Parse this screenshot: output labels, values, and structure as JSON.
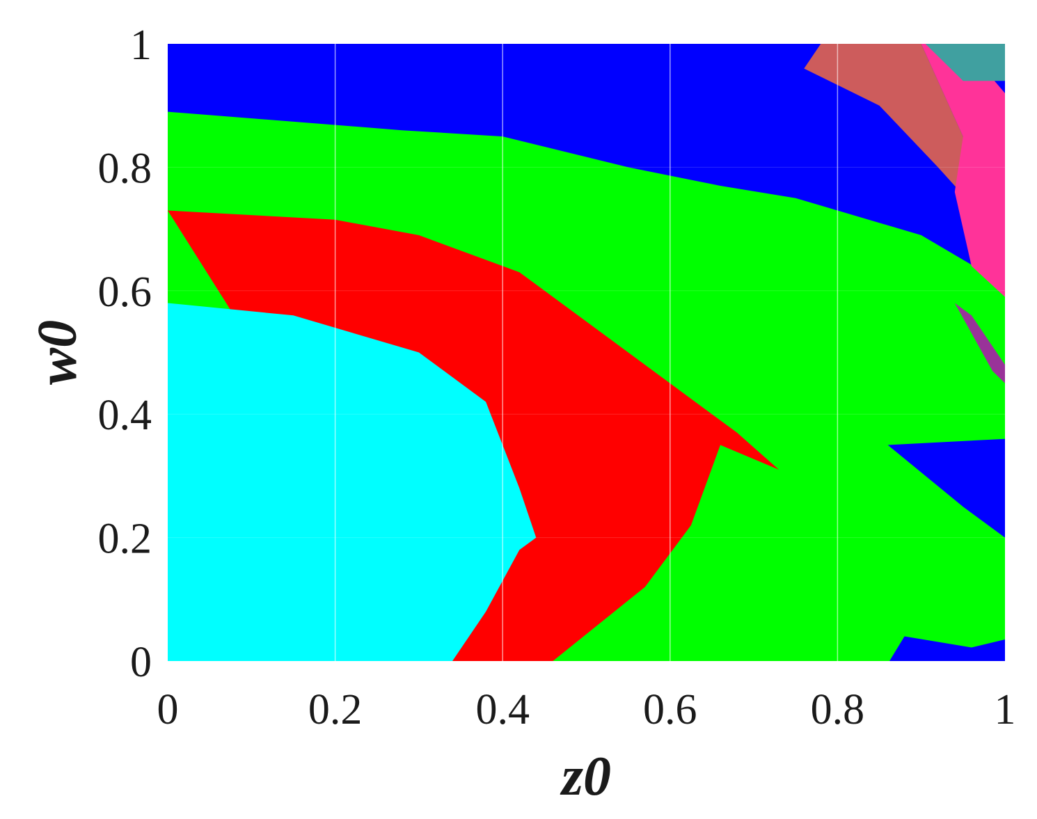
{
  "chart_data": {
    "type": "heatmap",
    "title": "",
    "xlabel": "z0",
    "ylabel": "w0",
    "xlim": [
      0,
      1
    ],
    "ylim": [
      0,
      1
    ],
    "x_ticks": [
      "0",
      "0.2",
      "0.4",
      "0.6",
      "0.8",
      "1"
    ],
    "y_ticks": [
      "0",
      "0.2",
      "0.4",
      "0.6",
      "0.8",
      "1"
    ],
    "x_tick_values": [
      0,
      0.2,
      0.4,
      0.6,
      0.8,
      1
    ],
    "y_tick_values": [
      0,
      0.2,
      0.4,
      0.6,
      0.8,
      1
    ],
    "grid": true,
    "legend": "none",
    "regions": [
      {
        "color": "#0000ff",
        "outline": [
          [
            0,
            0
          ],
          [
            1,
            0
          ],
          [
            1,
            1
          ],
          [
            0,
            1
          ]
        ]
      },
      {
        "color": "#00ff00",
        "outline": [
          [
            0,
            0
          ],
          [
            0.862,
            0
          ],
          [
            0.88,
            0.04
          ],
          [
            0.96,
            0.022
          ],
          [
            1,
            0.035
          ],
          [
            1,
            0.2
          ],
          [
            0.95,
            0.25
          ],
          [
            0.86,
            0.35
          ],
          [
            1,
            0.36
          ],
          [
            1,
            0.61
          ],
          [
            0.9,
            0.69
          ],
          [
            0.75,
            0.75
          ],
          [
            0.66,
            0.77
          ],
          [
            0.55,
            0.8
          ],
          [
            0.4,
            0.85
          ],
          [
            0.28,
            0.86
          ],
          [
            0,
            0.89
          ]
        ]
      },
      {
        "color": "#ff0000",
        "outline": [
          [
            0.34,
            0
          ],
          [
            0.46,
            0
          ],
          [
            0.57,
            0.12
          ],
          [
            0.625,
            0.22
          ],
          [
            0.66,
            0.35
          ],
          [
            0.73,
            0.31
          ],
          [
            0.68,
            0.37
          ],
          [
            0.54,
            0.51
          ],
          [
            0.42,
            0.63
          ],
          [
            0.3,
            0.69
          ],
          [
            0.2,
            0.715
          ],
          [
            0,
            0.73
          ]
        ]
      },
      {
        "color": "#00ffff",
        "outline": [
          [
            0,
            0
          ],
          [
            0.34,
            0
          ],
          [
            0.38,
            0.08
          ],
          [
            0.42,
            0.18
          ],
          [
            0.44,
            0.2
          ],
          [
            0.42,
            0.28
          ],
          [
            0.38,
            0.42
          ],
          [
            0.3,
            0.5
          ],
          [
            0.15,
            0.56
          ],
          [
            0,
            0.58
          ]
        ]
      },
      {
        "color": "#cd5c5c",
        "outline": [
          [
            0.78,
            1
          ],
          [
            0.9,
            1
          ],
          [
            0.95,
            0.85
          ],
          [
            0.96,
            0.74
          ],
          [
            0.92,
            0.8
          ],
          [
            0.85,
            0.9
          ],
          [
            0.76,
            0.96
          ]
        ]
      },
      {
        "color": "#ff3399",
        "outline": [
          [
            0.9,
            1
          ],
          [
            0.95,
            1
          ],
          [
            1,
            0.92
          ],
          [
            1,
            0.59
          ],
          [
            0.96,
            0.64
          ],
          [
            0.94,
            0.76
          ],
          [
            0.95,
            0.85
          ]
        ]
      },
      {
        "color": "#40a0a0",
        "outline": [
          [
            0.905,
            1
          ],
          [
            1,
            1
          ],
          [
            1,
            0.94
          ],
          [
            0.95,
            0.94
          ]
        ]
      },
      {
        "color": "#993399",
        "outline": [
          [
            0.94,
            0.58
          ],
          [
            0.96,
            0.56
          ],
          [
            1,
            0.48
          ],
          [
            1,
            0.45
          ],
          [
            0.985,
            0.47
          ]
        ]
      }
    ]
  }
}
